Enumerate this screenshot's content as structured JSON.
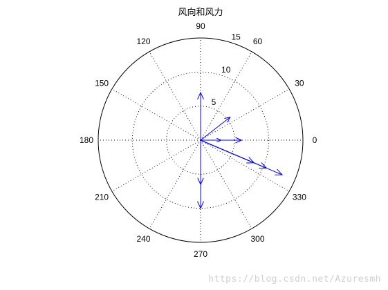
{
  "chart_data": {
    "type": "polar-compass",
    "title": "风向和风力",
    "r_ticks": [
      "5",
      "10",
      "15"
    ],
    "r_max": 15,
    "angle_ticks": [
      "0",
      "30",
      "60",
      "90",
      "120",
      "150",
      "180",
      "210",
      "240",
      "270",
      "300",
      "330"
    ],
    "grid": true,
    "vectors": [
      {
        "angle": 90,
        "magnitude": 7
      },
      {
        "angle": 0,
        "magnitude": 6
      },
      {
        "angle": 0,
        "magnitude": 3
      },
      {
        "angle": 38,
        "magnitude": 5.5
      },
      {
        "angle": 270,
        "magnitude": 10
      },
      {
        "angle": 270,
        "magnitude": 6.5
      },
      {
        "angle": -23,
        "magnitude": 8.5
      },
      {
        "angle": -23,
        "magnitude": 10.5
      },
      {
        "angle": -23,
        "magnitude": 13
      }
    ],
    "arrow_color": "#0000ff"
  },
  "watermark": "https://blog.csdn.net/Azuresmh"
}
